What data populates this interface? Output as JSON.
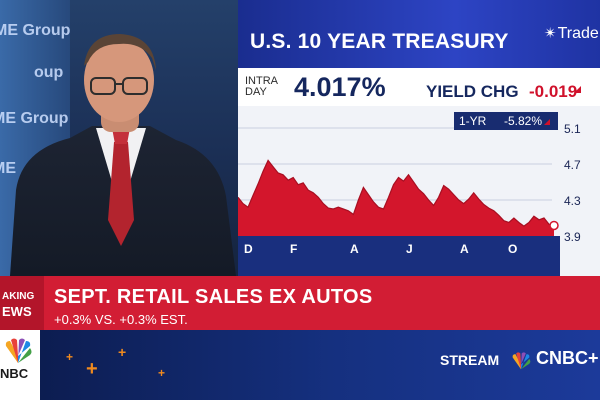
{
  "studio": {
    "wall_text": [
      "ME Group",
      "oup",
      "ME Group",
      "ME"
    ]
  },
  "panel": {
    "title": "U.S. 10 YEAR TREASURY",
    "logo": "Trade",
    "intraday_label_1": "INTRA",
    "intraday_label_2": "DAY",
    "yield_value": "4.017%",
    "yield_change_label": "YIELD CHG",
    "yield_change_value": "-0.019",
    "one_year_label": "1-YR",
    "one_year_value": "-5.82%"
  },
  "chart_data": {
    "type": "area",
    "x_labels": [
      "D",
      "F",
      "A",
      "J",
      "A",
      "O"
    ],
    "y_ticks": [
      "5.1",
      "4.7",
      "4.3",
      "3.9"
    ],
    "ylim": [
      3.9,
      5.1
    ],
    "values": [
      4.33,
      4.26,
      4.22,
      4.35,
      4.48,
      4.62,
      4.74,
      4.67,
      4.6,
      4.58,
      4.52,
      4.55,
      4.47,
      4.49,
      4.41,
      4.38,
      4.33,
      4.26,
      4.21,
      4.2,
      4.22,
      4.2,
      4.18,
      4.14,
      4.3,
      4.44,
      4.36,
      4.28,
      4.22,
      4.2,
      4.33,
      4.47,
      4.55,
      4.51,
      4.58,
      4.5,
      4.42,
      4.37,
      4.3,
      4.24,
      4.33,
      4.46,
      4.42,
      4.36,
      4.3,
      4.26,
      4.31,
      4.38,
      4.31,
      4.25,
      4.21,
      4.18,
      4.13,
      4.07,
      4.05,
      4.1,
      4.05,
      4.01,
      4.05,
      4.12,
      4.08,
      4.1,
      4.03,
      4.017
    ],
    "color": "#d3162c"
  },
  "breaking": {
    "tag_top": "AKING",
    "tag_bottom": "EWS",
    "headline": "SEPT. RETAIL SALES EX AUTOS",
    "subline": "+0.3% VS. +0.3% EST."
  },
  "bottom": {
    "network_label": "NBC",
    "stream_label": "STREAM",
    "cnbc_plus": "CNBC+"
  }
}
